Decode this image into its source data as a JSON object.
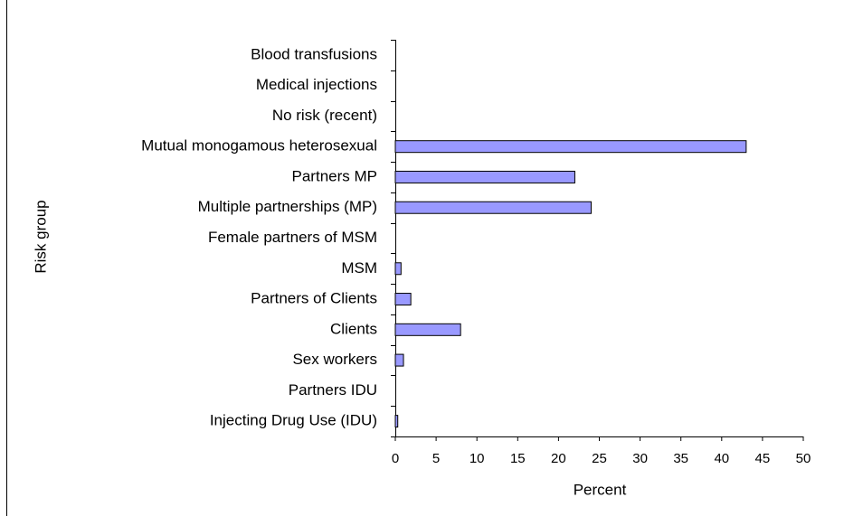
{
  "chart_data": {
    "type": "bar",
    "orientation": "horizontal",
    "categories": [
      "Blood transfusions",
      "Medical injections",
      "No risk (recent)",
      "Mutual monogamous heterosexual",
      "Partners MP",
      "Multiple partnerships (MP)",
      "Female partners of MSM",
      "MSM",
      "Partners of Clients",
      "Clients",
      "Sex workers",
      "Partners IDU",
      "Injecting Drug Use (IDU)"
    ],
    "values": [
      0,
      0,
      0,
      43,
      22,
      24,
      0,
      0.7,
      1.9,
      8,
      1,
      0,
      0.3
    ],
    "color": "#9999ff",
    "xlabel": "Percent",
    "ylabel": "Risk group",
    "xlim": [
      0,
      50
    ],
    "xticks": [
      0,
      5,
      10,
      15,
      20,
      25,
      30,
      35,
      40,
      45,
      50
    ],
    "grid": false
  }
}
